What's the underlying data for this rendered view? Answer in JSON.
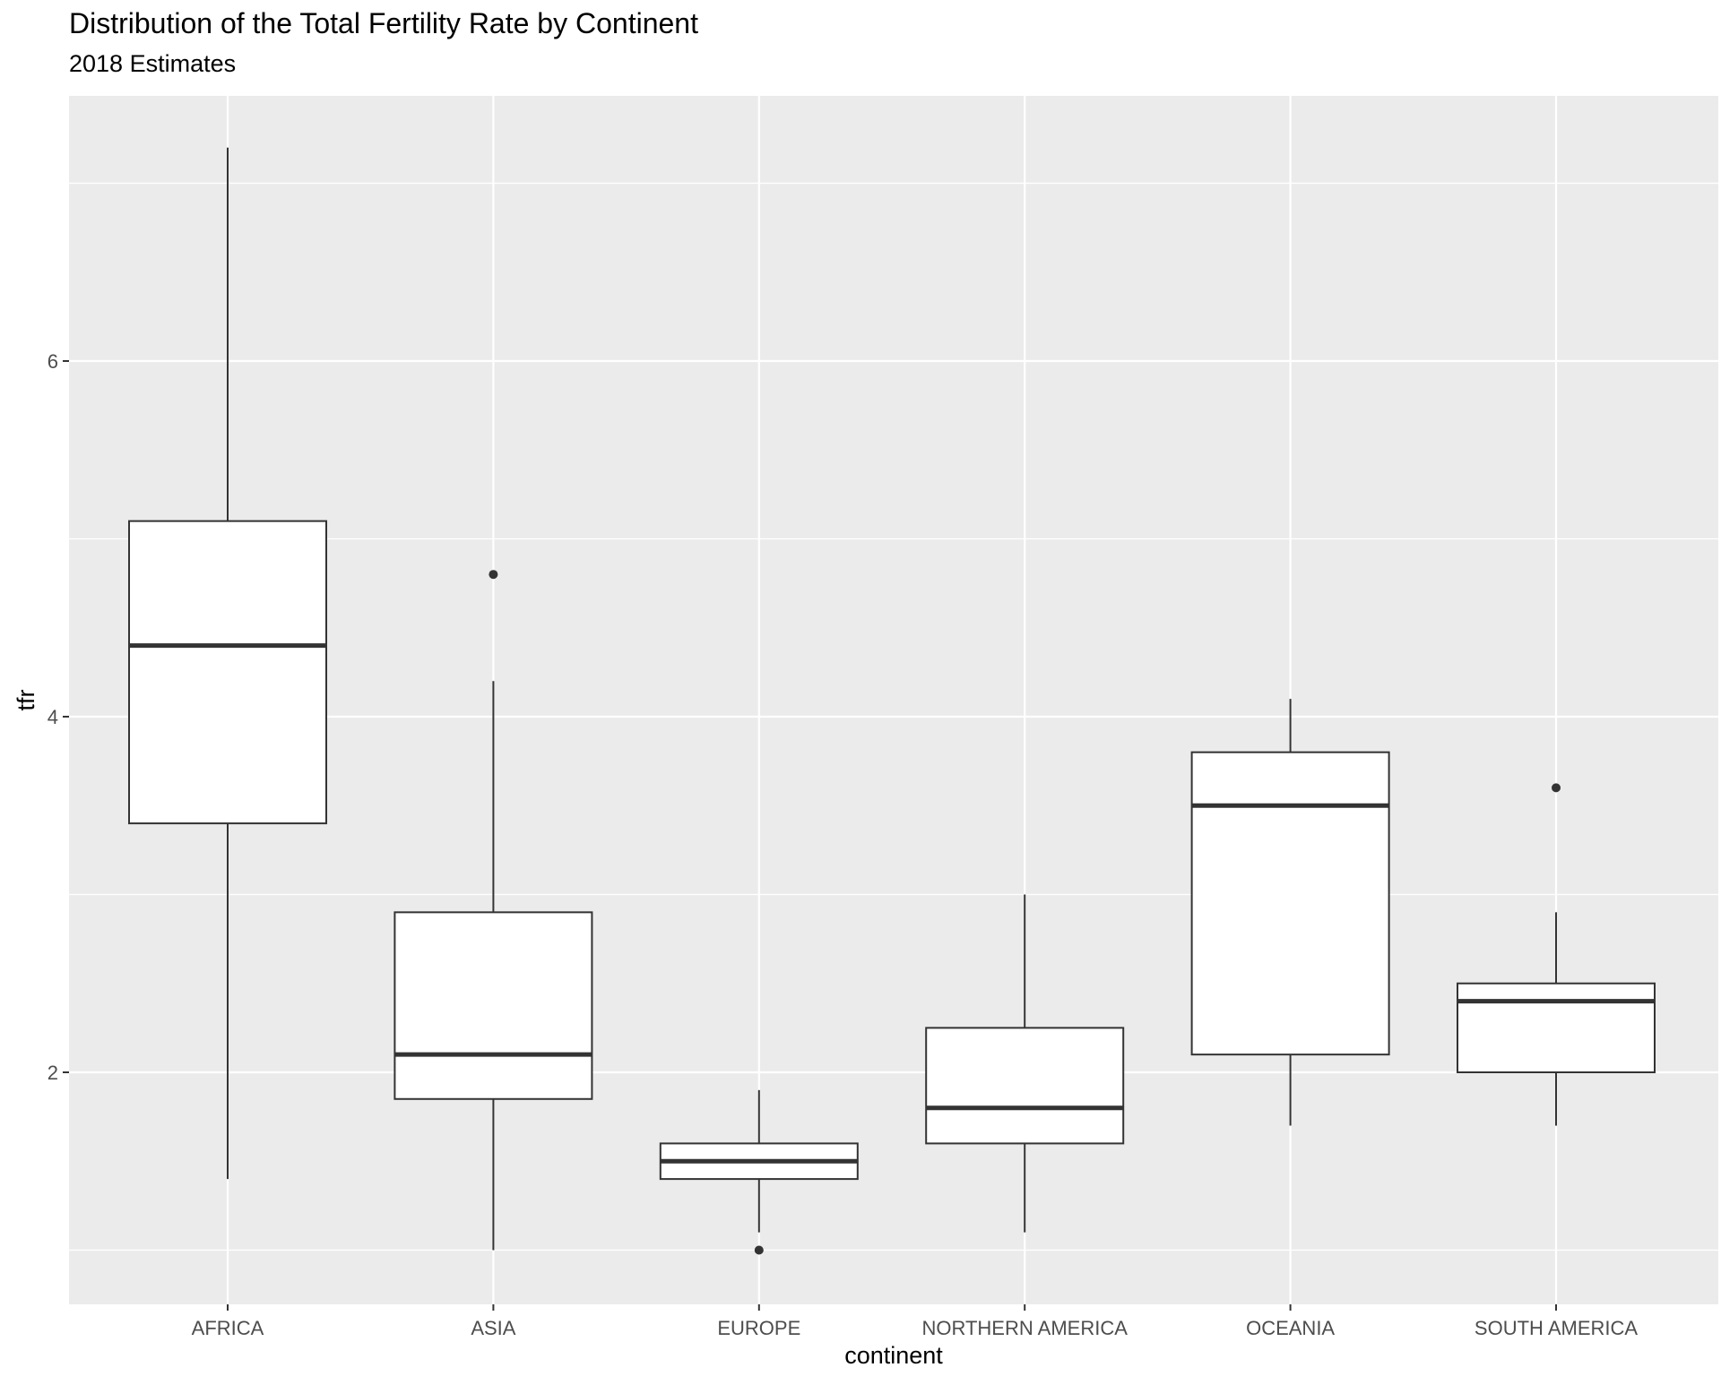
{
  "chart_data": {
    "type": "boxplot",
    "title": "Distribution of the Total Fertility Rate by Continent",
    "subtitle": "2018 Estimates",
    "xlabel": "continent",
    "ylabel": "tfr",
    "categories": [
      "AFRICA",
      "ASIA",
      "EUROPE",
      "NORTHERN AMERICA",
      "OCEANIA",
      "SOUTH AMERICA"
    ],
    "yticks": [
      2,
      4,
      6
    ],
    "ylim": [
      0.77,
      7.6
    ],
    "grid": true,
    "colors": {
      "panel": "#EBEBEB",
      "grid": "#FFFFFF",
      "box_fill": "#FFFFFF",
      "box_line": "#333333",
      "tick_label": "#4D4D4D"
    },
    "boxes": [
      {
        "category": "AFRICA",
        "whisker_low": 1.4,
        "q1": 3.4,
        "median": 4.4,
        "q3": 5.1,
        "whisker_high": 7.2,
        "outliers": []
      },
      {
        "category": "ASIA",
        "whisker_low": 1.0,
        "q1": 1.85,
        "median": 2.1,
        "q3": 2.9,
        "whisker_high": 4.2,
        "outliers": [
          4.8
        ]
      },
      {
        "category": "EUROPE",
        "whisker_low": 1.1,
        "q1": 1.4,
        "median": 1.5,
        "q3": 1.6,
        "whisker_high": 1.9,
        "outliers": [
          1.0
        ]
      },
      {
        "category": "NORTHERN AMERICA",
        "whisker_low": 1.1,
        "q1": 1.6,
        "median": 1.8,
        "q3": 2.25,
        "whisker_high": 3.0,
        "outliers": []
      },
      {
        "category": "OCEANIA",
        "whisker_low": 1.7,
        "q1": 2.1,
        "median": 3.5,
        "q3": 3.8,
        "whisker_high": 4.1,
        "outliers": []
      },
      {
        "category": "SOUTH AMERICA",
        "whisker_low": 1.7,
        "q1": 2.0,
        "median": 2.4,
        "q3": 2.5,
        "whisker_high": 2.9,
        "outliers": [
          3.6
        ]
      }
    ]
  }
}
